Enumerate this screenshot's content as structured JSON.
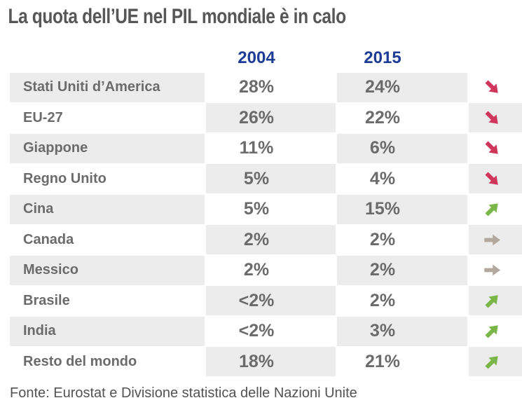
{
  "title": "La quota dell’UE nel PIL mondiale è in calo",
  "table": {
    "columns": {
      "year_2004": "2004",
      "year_2015": "2015"
    },
    "rows": [
      {
        "country": "Stati Uniti d’America",
        "v2004": "28%",
        "v2015": "24%",
        "trend": "down"
      },
      {
        "country": "EU-27",
        "v2004": "26%",
        "v2015": "22%",
        "trend": "down"
      },
      {
        "country": "Giappone",
        "v2004": "11%",
        "v2015": "6%",
        "trend": "down"
      },
      {
        "country": "Regno Unito",
        "v2004": "5%",
        "v2015": "4%",
        "trend": "down"
      },
      {
        "country": "Cina",
        "v2004": "5%",
        "v2015": "15%",
        "trend": "up"
      },
      {
        "country": "Canada",
        "v2004": "2%",
        "v2015": "2%",
        "trend": "flat"
      },
      {
        "country": "Messico",
        "v2004": "2%",
        "v2015": "2%",
        "trend": "flat"
      },
      {
        "country": "Brasile",
        "v2004": "<2%",
        "v2015": "2%",
        "trend": "up"
      },
      {
        "country": "India",
        "v2004": "<2%",
        "v2015": "3%",
        "trend": "up"
      },
      {
        "country": "Resto del mondo",
        "v2004": "18%",
        "v2015": "21%",
        "trend": "up"
      }
    ]
  },
  "source": "Fonte: Eurostat e Divisione statistica delle Nazioni Unite",
  "colors": {
    "header_blue": "#1d3c96",
    "title_gray": "#575757",
    "text_gray": "#6b6b6b",
    "cell_gray": "#ececec",
    "trend_down": "#d0355b",
    "trend_up": "#7ab648",
    "trend_flat": "#b3a89e"
  },
  "chart_data": {
    "type": "table",
    "title": "La quota dell’UE nel PIL mondiale è in calo",
    "categories": [
      "Stati Uniti d’America",
      "EU-27",
      "Giappone",
      "Regno Unito",
      "Cina",
      "Canada",
      "Messico",
      "Brasile",
      "India",
      "Resto del mondo"
    ],
    "series": [
      {
        "name": "2004",
        "values": [
          "28%",
          "26%",
          "11%",
          "5%",
          "5%",
          "2%",
          "2%",
          "<2%",
          "<2%",
          "18%"
        ]
      },
      {
        "name": "2015",
        "values": [
          "24%",
          "22%",
          "6%",
          "4%",
          "15%",
          "2%",
          "2%",
          "2%",
          "3%",
          "21%"
        ]
      },
      {
        "name": "trend",
        "values": [
          "down",
          "down",
          "down",
          "down",
          "up",
          "flat",
          "flat",
          "up",
          "up",
          "up"
        ]
      }
    ],
    "source": "Fonte: Eurostat e Divisione statistica delle Nazioni Unite"
  }
}
